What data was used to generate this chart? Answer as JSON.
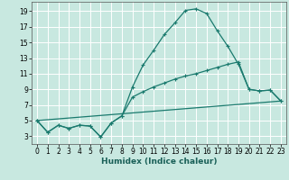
{
  "xlabel": "Humidex (Indice chaleur)",
  "bg_color": "#c8e8e0",
  "grid_color": "#ffffff",
  "line_color": "#1a7a6e",
  "xlim": [
    -0.5,
    23.5
  ],
  "ylim": [
    2.0,
    20.2
  ],
  "yticks": [
    3,
    5,
    7,
    9,
    11,
    13,
    15,
    17,
    19
  ],
  "xticks": [
    0,
    1,
    2,
    3,
    4,
    5,
    6,
    7,
    8,
    9,
    10,
    11,
    12,
    13,
    14,
    15,
    16,
    17,
    18,
    19,
    20,
    21,
    22,
    23
  ],
  "line1_x": [
    0,
    1,
    2,
    3,
    4,
    5,
    6,
    7,
    8,
    9,
    10,
    11,
    12,
    13,
    14,
    15,
    16,
    17,
    18,
    19,
    20,
    21,
    22,
    23
  ],
  "line1_y": [
    5.0,
    3.5,
    4.4,
    4.0,
    4.4,
    4.3,
    2.9,
    4.7,
    5.6,
    9.3,
    12.1,
    14.0,
    16.0,
    17.5,
    19.1,
    19.3,
    18.7,
    16.5,
    14.5,
    12.2,
    9.0,
    8.8,
    8.9,
    7.5
  ],
  "line2_x": [
    0,
    1,
    2,
    3,
    4,
    5,
    6,
    7,
    8,
    9,
    10,
    11,
    12,
    13,
    14,
    15,
    16,
    17,
    18,
    19,
    20,
    21,
    22,
    23
  ],
  "line2_y": [
    5.0,
    3.5,
    4.4,
    4.0,
    4.4,
    4.3,
    2.9,
    4.7,
    5.6,
    8.0,
    8.7,
    9.3,
    9.8,
    10.3,
    10.7,
    11.0,
    11.4,
    11.8,
    12.2,
    12.5,
    9.0,
    8.8,
    8.9,
    7.5
  ],
  "line3_x": [
    0,
    23
  ],
  "line3_y": [
    5.0,
    7.5
  ]
}
